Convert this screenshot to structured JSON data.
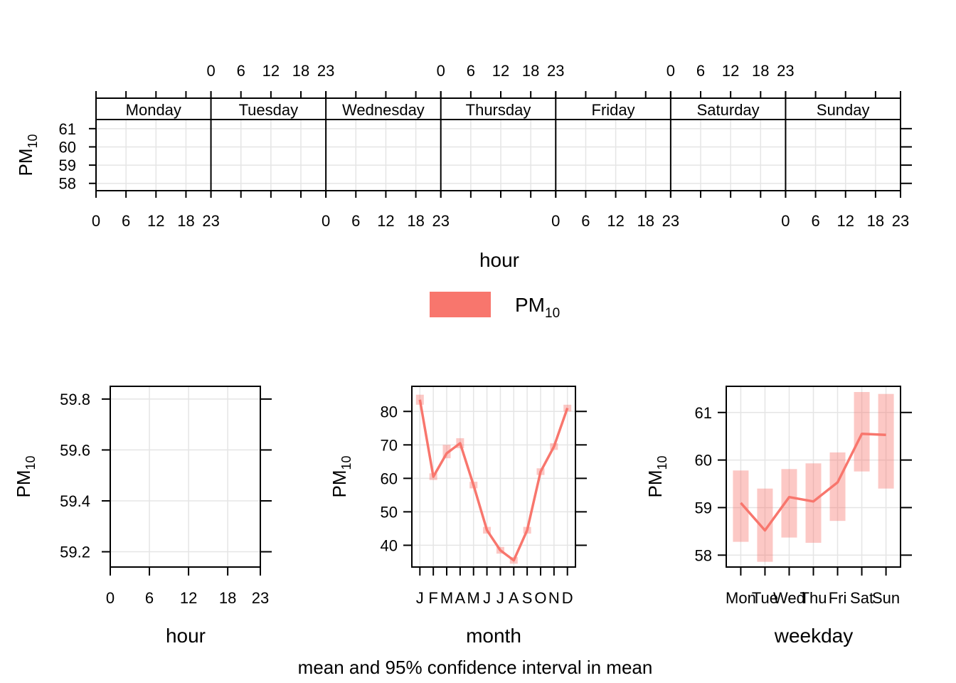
{
  "legend": {
    "label": "PM",
    "sub": "10",
    "color": "#F8766D"
  },
  "caption": "mean and 95% confidence interval in mean",
  "chart_data": [
    {
      "id": "day_hour",
      "type": "line",
      "panels": [
        "Monday",
        "Tuesday",
        "Wednesday",
        "Thursday",
        "Friday",
        "Saturday",
        "Sunday"
      ],
      "xlabel": "hour",
      "ylabel": "PM",
      "ylabel_sub": "10",
      "xticks": [
        0,
        6,
        12,
        18,
        23
      ],
      "xlim": [
        0,
        23
      ],
      "yticks": [
        58,
        59,
        60,
        61
      ],
      "ylim": [
        57.6,
        61.5
      ],
      "series": []
    },
    {
      "id": "hour",
      "type": "line",
      "xlabel": "hour",
      "ylabel": "PM",
      "ylabel_sub": "10",
      "xticks": [
        0,
        6,
        12,
        18,
        23
      ],
      "xlim": [
        0,
        23
      ],
      "yticks": [
        59.2,
        59.4,
        59.6,
        59.8
      ],
      "ylim": [
        59.14,
        59.85
      ],
      "series": []
    },
    {
      "id": "month",
      "type": "line",
      "xlabel": "month",
      "ylabel": "PM",
      "ylabel_sub": "10",
      "categories": [
        "J",
        "F",
        "M",
        "A",
        "M",
        "J",
        "J",
        "A",
        "S",
        "O",
        "N",
        "D"
      ],
      "yticks": [
        40,
        50,
        60,
        70,
        80
      ],
      "ylim": [
        33.5,
        87.5
      ],
      "series": [
        {
          "mean": [
            83.5,
            60.5,
            67.5,
            70.5,
            58,
            44.5,
            38.5,
            35.5,
            44.5,
            62,
            69.5,
            81
          ],
          "lower": [
            82,
            59.5,
            66,
            69,
            57,
            43.5,
            37.5,
            34.5,
            43.5,
            61,
            68.5,
            80
          ],
          "upper": [
            85,
            61.5,
            70,
            72,
            59,
            45.5,
            39.5,
            36.5,
            45.5,
            63,
            70.5,
            82
          ]
        }
      ]
    },
    {
      "id": "weekday",
      "type": "line",
      "xlabel": "weekday",
      "ylabel": "PM",
      "ylabel_sub": "10",
      "categories": [
        "Mon",
        "Tue",
        "Wed",
        "Thu",
        "Fri",
        "Sat",
        "Sun"
      ],
      "yticks": [
        58,
        59,
        60,
        61
      ],
      "ylim": [
        57.75,
        61.55
      ],
      "series": [
        {
          "mean": [
            59.1,
            58.52,
            59.22,
            59.13,
            59.53,
            60.55,
            60.53
          ],
          "lower": [
            58.28,
            57.86,
            58.37,
            58.26,
            58.72,
            59.76,
            59.4
          ],
          "upper": [
            59.78,
            59.4,
            59.81,
            59.93,
            60.16,
            61.43,
            61.39
          ]
        }
      ]
    }
  ]
}
